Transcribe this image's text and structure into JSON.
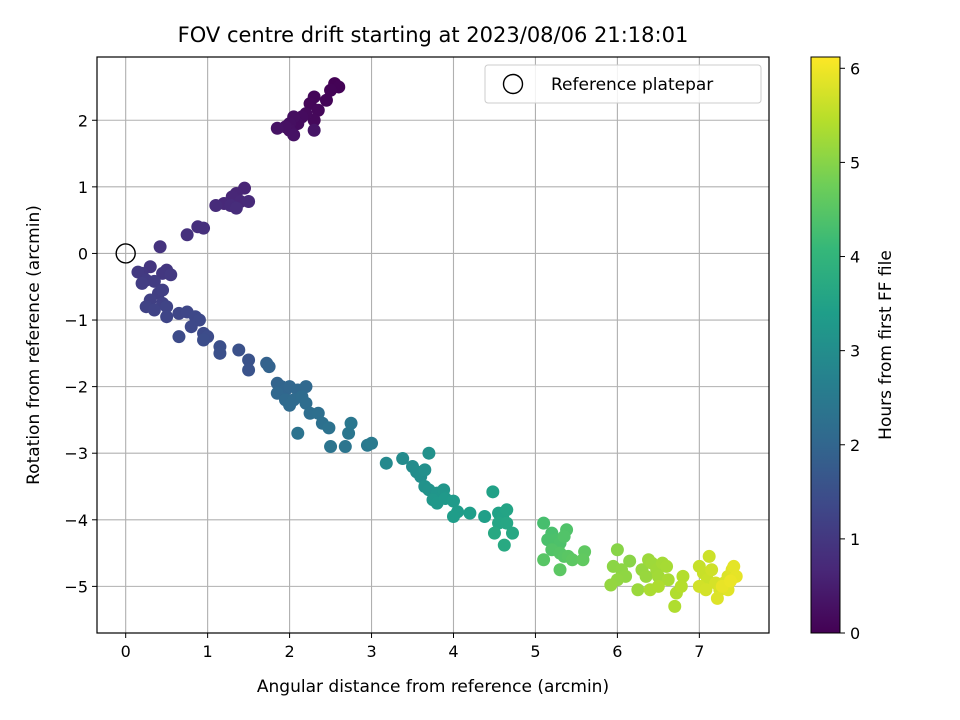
{
  "chart_data": {
    "type": "scatter",
    "title": "FOV centre drift starting at 2023/08/06 21:18:01",
    "xlabel": "Angular distance from reference (arcmin)",
    "ylabel": "Rotation from reference (arcmin)",
    "xlim": [
      -0.35,
      7.85
    ],
    "ylim": [
      -5.7,
      2.95
    ],
    "x_ticks": [
      0,
      1,
      2,
      3,
      4,
      5,
      6,
      7
    ],
    "y_ticks": [
      -5,
      -4,
      -3,
      -2,
      -1,
      0,
      1,
      2
    ],
    "grid": true,
    "legend": {
      "position": "top-right",
      "entries": [
        "Reference platepar"
      ]
    },
    "reference_point": {
      "x": 0,
      "y": 0
    },
    "colorbar": {
      "label": "Hours from first FF file",
      "colormap": "viridis",
      "range": [
        0,
        6.12
      ],
      "ticks": [
        0,
        1,
        2,
        3,
        4,
        5,
        6
      ]
    },
    "colormap_stops": [
      "#440154",
      "#482878",
      "#3e4989",
      "#31688e",
      "#26828e",
      "#1f9e89",
      "#35b779",
      "#6ece58",
      "#b5de2b",
      "#fde725"
    ],
    "points": [
      [
        2.55,
        2.55,
        0.02
      ],
      [
        2.6,
        2.5,
        0.03
      ],
      [
        2.5,
        2.45,
        0.05
      ],
      [
        2.45,
        2.3,
        0.07
      ],
      [
        2.3,
        2.35,
        0.08
      ],
      [
        2.25,
        2.25,
        0.1
      ],
      [
        2.35,
        2.15,
        0.12
      ],
      [
        2.3,
        2.0,
        0.14
      ],
      [
        2.2,
        2.1,
        0.16
      ],
      [
        2.15,
        2.05,
        0.18
      ],
      [
        2.1,
        1.95,
        0.2
      ],
      [
        2.05,
        2.05,
        0.22
      ],
      [
        2.0,
        1.95,
        0.24
      ],
      [
        2.0,
        1.85,
        0.26
      ],
      [
        1.95,
        1.9,
        0.28
      ],
      [
        2.05,
        1.78,
        0.3
      ],
      [
        1.85,
        1.88,
        0.32
      ],
      [
        2.3,
        1.85,
        0.34
      ],
      [
        1.45,
        0.98,
        0.62
      ],
      [
        1.35,
        0.9,
        0.64
      ],
      [
        1.3,
        0.85,
        0.66
      ],
      [
        1.4,
        0.78,
        0.68
      ],
      [
        1.2,
        0.75,
        0.7
      ],
      [
        1.5,
        0.78,
        0.72
      ],
      [
        1.28,
        0.72,
        0.74
      ],
      [
        1.1,
        0.72,
        0.76
      ],
      [
        1.35,
        0.68,
        0.78
      ],
      [
        0.88,
        0.4,
        0.82
      ],
      [
        0.95,
        0.38,
        0.84
      ],
      [
        0.75,
        0.28,
        0.86
      ],
      [
        0.42,
        0.1,
        0.9
      ],
      [
        0.3,
        -0.2,
        0.95
      ],
      [
        0.5,
        -0.25,
        0.97
      ],
      [
        0.45,
        -0.3,
        0.99
      ],
      [
        0.2,
        -0.3,
        1.01
      ],
      [
        0.55,
        -0.32,
        1.03
      ],
      [
        0.15,
        -0.28,
        1.05
      ],
      [
        0.25,
        -0.4,
        1.07
      ],
      [
        0.35,
        -0.42,
        1.09
      ],
      [
        0.2,
        -0.45,
        1.11
      ],
      [
        0.4,
        -0.6,
        1.13
      ],
      [
        0.45,
        -0.55,
        1.15
      ],
      [
        0.3,
        -0.7,
        1.17
      ],
      [
        0.45,
        -0.75,
        1.19
      ],
      [
        0.25,
        -0.8,
        1.21
      ],
      [
        0.35,
        -0.85,
        1.23
      ],
      [
        0.5,
        -0.8,
        1.25
      ],
      [
        0.5,
        -0.95,
        1.27
      ],
      [
        0.65,
        -0.9,
        1.29
      ],
      [
        0.75,
        -0.88,
        1.31
      ],
      [
        0.85,
        -0.95,
        1.33
      ],
      [
        0.9,
        -1.0,
        1.35
      ],
      [
        0.8,
        -1.1,
        1.37
      ],
      [
        0.95,
        -1.2,
        1.39
      ],
      [
        0.65,
        -1.25,
        1.41
      ],
      [
        1.0,
        -1.25,
        1.43
      ],
      [
        0.95,
        -1.3,
        1.45
      ],
      [
        1.15,
        -1.4,
        1.5
      ],
      [
        1.15,
        -1.5,
        1.52
      ],
      [
        1.38,
        -1.45,
        1.54
      ],
      [
        1.5,
        -1.6,
        1.56
      ],
      [
        1.5,
        -1.75,
        1.58
      ],
      [
        1.72,
        -1.65,
        1.9
      ],
      [
        1.75,
        -1.7,
        1.92
      ],
      [
        1.85,
        -1.95,
        1.95
      ],
      [
        1.9,
        -2.0,
        1.97
      ],
      [
        1.95,
        -2.05,
        1.99
      ],
      [
        2.0,
        -2.0,
        2.01
      ],
      [
        1.85,
        -2.1,
        2.03
      ],
      [
        2.1,
        -2.05,
        2.05
      ],
      [
        2.2,
        -2.0,
        2.07
      ],
      [
        1.95,
        -2.2,
        2.09
      ],
      [
        2.05,
        -2.2,
        2.11
      ],
      [
        2.0,
        -2.28,
        2.13
      ],
      [
        2.15,
        -2.15,
        2.15
      ],
      [
        2.2,
        -2.25,
        2.17
      ],
      [
        2.25,
        -2.4,
        2.2
      ],
      [
        2.35,
        -2.4,
        2.23
      ],
      [
        2.4,
        -2.55,
        2.26
      ],
      [
        2.48,
        -2.62,
        2.29
      ],
      [
        2.1,
        -2.7,
        2.32
      ],
      [
        2.5,
        -2.9,
        2.35
      ],
      [
        2.68,
        -2.9,
        2.38
      ],
      [
        2.72,
        -2.7,
        2.41
      ],
      [
        2.75,
        -2.55,
        2.44
      ],
      [
        2.95,
        -2.88,
        2.47
      ],
      [
        3.0,
        -2.85,
        2.5
      ],
      [
        3.18,
        -3.15,
        2.9
      ],
      [
        3.38,
        -3.08,
        2.93
      ],
      [
        3.5,
        -3.2,
        2.96
      ],
      [
        3.55,
        -3.28,
        2.99
      ],
      [
        3.6,
        -3.35,
        3.02
      ],
      [
        3.65,
        -3.25,
        3.05
      ],
      [
        3.7,
        -3.0,
        3.08
      ],
      [
        3.65,
        -3.5,
        3.11
      ],
      [
        3.7,
        -3.55,
        3.14
      ],
      [
        3.8,
        -3.6,
        3.17
      ],
      [
        3.88,
        -3.55,
        3.2
      ],
      [
        3.75,
        -3.7,
        3.23
      ],
      [
        3.8,
        -3.75,
        3.26
      ],
      [
        3.9,
        -3.68,
        3.29
      ],
      [
        4.0,
        -3.72,
        3.32
      ],
      [
        4.05,
        -3.88,
        3.35
      ],
      [
        4.0,
        -3.95,
        3.38
      ],
      [
        4.2,
        -3.9,
        3.41
      ],
      [
        4.38,
        -3.95,
        3.44
      ],
      [
        4.48,
        -3.58,
        3.47
      ],
      [
        4.55,
        -3.9,
        3.5
      ],
      [
        4.6,
        -3.95,
        3.53
      ],
      [
        4.65,
        -3.85,
        3.56
      ],
      [
        4.55,
        -4.05,
        3.59
      ],
      [
        4.65,
        -4.05,
        3.62
      ],
      [
        4.72,
        -4.2,
        3.65
      ],
      [
        4.5,
        -4.2,
        3.68
      ],
      [
        4.62,
        -4.38,
        3.71
      ],
      [
        5.1,
        -4.05,
        4.3
      ],
      [
        5.2,
        -4.2,
        4.32
      ],
      [
        5.15,
        -4.3,
        4.34
      ],
      [
        5.25,
        -4.3,
        4.36
      ],
      [
        5.3,
        -4.35,
        4.38
      ],
      [
        5.38,
        -4.15,
        4.4
      ],
      [
        5.35,
        -4.25,
        4.42
      ],
      [
        5.2,
        -4.45,
        4.44
      ],
      [
        5.3,
        -4.5,
        4.46
      ],
      [
        5.35,
        -4.55,
        4.48
      ],
      [
        5.1,
        -4.6,
        4.5
      ],
      [
        5.4,
        -4.55,
        4.52
      ],
      [
        5.3,
        -4.75,
        4.54
      ],
      [
        5.45,
        -4.6,
        4.56
      ],
      [
        5.6,
        -4.48,
        4.58
      ],
      [
        5.58,
        -4.6,
        4.6
      ],
      [
        6.0,
        -4.45,
        5.0
      ],
      [
        6.15,
        -4.62,
        5.02
      ],
      [
        5.95,
        -4.7,
        5.04
      ],
      [
        6.05,
        -4.75,
        5.06
      ],
      [
        6.1,
        -4.85,
        5.08
      ],
      [
        6.0,
        -4.9,
        5.1
      ],
      [
        5.92,
        -4.98,
        5.12
      ],
      [
        6.3,
        -4.75,
        5.14
      ],
      [
        6.35,
        -4.85,
        5.16
      ],
      [
        6.25,
        -5.05,
        5.18
      ],
      [
        6.38,
        -4.6,
        5.2
      ],
      [
        6.42,
        -4.65,
        5.22
      ],
      [
        6.48,
        -4.75,
        5.24
      ],
      [
        6.5,
        -4.85,
        5.26
      ],
      [
        6.55,
        -4.65,
        5.28
      ],
      [
        6.6,
        -4.7,
        5.3
      ],
      [
        6.62,
        -4.9,
        5.32
      ],
      [
        6.4,
        -5.05,
        5.34
      ],
      [
        6.5,
        -5.0,
        5.36
      ],
      [
        6.7,
        -5.3,
        5.38
      ],
      [
        6.72,
        -5.1,
        5.4
      ],
      [
        6.8,
        -4.85,
        5.42
      ],
      [
        6.78,
        -5.0,
        5.44
      ],
      [
        7.0,
        -4.7,
        5.6
      ],
      [
        7.05,
        -4.8,
        5.62
      ],
      [
        7.1,
        -4.9,
        5.64
      ],
      [
        7.12,
        -4.55,
        5.66
      ],
      [
        7.15,
        -4.75,
        5.68
      ],
      [
        7.0,
        -5.0,
        5.7
      ],
      [
        7.08,
        -5.05,
        5.72
      ],
      [
        7.2,
        -4.95,
        5.74
      ],
      [
        7.25,
        -5.05,
        5.76
      ],
      [
        7.3,
        -4.95,
        5.78
      ],
      [
        7.35,
        -4.85,
        5.8
      ],
      [
        7.22,
        -5.18,
        5.82
      ],
      [
        7.4,
        -4.75,
        5.84
      ],
      [
        7.35,
        -5.05,
        5.86
      ],
      [
        7.42,
        -4.7,
        5.88
      ],
      [
        7.45,
        -4.85,
        5.9
      ],
      [
        7.28,
        -5.0,
        5.92
      ],
      [
        7.38,
        -4.92,
        5.95
      ]
    ]
  }
}
